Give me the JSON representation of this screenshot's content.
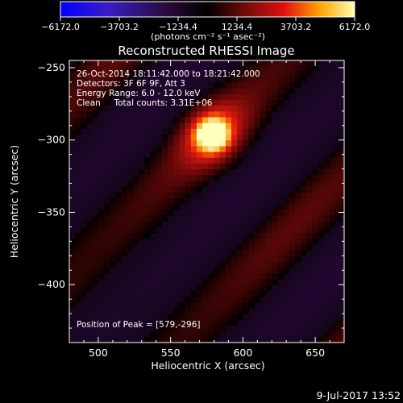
{
  "colorbar": {
    "tick_labels": [
      "−6172.0",
      "−3703.2",
      "−1234.4",
      "1234.4",
      "3703.2",
      "6172.0"
    ],
    "tick_values": [
      -6172.0,
      -3703.2,
      -1234.4,
      1234.4,
      3703.2,
      6172.0
    ],
    "range": [
      -6172.0,
      6172.0
    ],
    "units_label": "(photons cm⁻² s⁻¹ asec⁻²)"
  },
  "chart_data": {
    "type": "heatmap",
    "title": "Reconstructed RHESSI Image",
    "xlabel": "Heliocentric X (arcsec)",
    "ylabel": "Heliocentric Y (arcsec)",
    "xlim": [
      480,
      670
    ],
    "ylim": [
      -440,
      -245
    ],
    "x_ticks": [
      500,
      550,
      600,
      650
    ],
    "y_ticks": [
      -250,
      -300,
      -350,
      -400
    ],
    "x_tick_labels": [
      "500",
      "550",
      "600",
      "650"
    ],
    "y_tick_labels": [
      "−250",
      "−300",
      "−350",
      "−400"
    ],
    "peak": {
      "x": 579,
      "y": -296
    },
    "annotations": [
      "26-Oct-2014 18:11:42.000 to 18:21:42.000",
      "Detectors: 3F 6F 9F, Att 3",
      "Energy Range: 6.0 - 12.0 keV",
      "Clean     Total counts: 3.31E+06"
    ],
    "peak_label": "Position of Peak = [579,-296]"
  },
  "footer": {
    "date_label": "9-Jul-2017 13:52"
  }
}
